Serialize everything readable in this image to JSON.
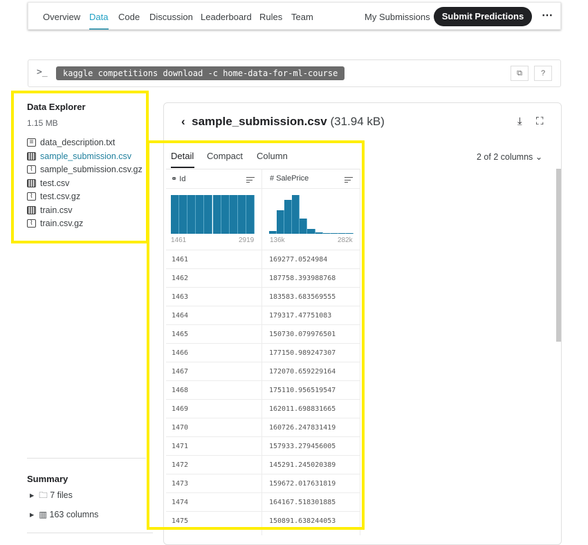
{
  "nav": {
    "items": [
      "Overview",
      "Data",
      "Code",
      "Discussion",
      "Leaderboard",
      "Rules",
      "Team"
    ],
    "active": "Data",
    "my_submissions": "My Submissions",
    "submit": "Submit Predictions",
    "more": "⋯"
  },
  "command": {
    "prompt": ">_",
    "text": "kaggle competitions download -c home-data-for-ml-course",
    "copy_icon": "copy-icon",
    "help": "?"
  },
  "explorer": {
    "title": "Data Explorer",
    "size": "1.15 MB",
    "files": [
      {
        "name": "data_description.txt",
        "icon": "text-file-icon"
      },
      {
        "name": "sample_submission.csv",
        "icon": "table-icon",
        "selected": true
      },
      {
        "name": "sample_submission.csv.gz",
        "icon": "archive-icon"
      },
      {
        "name": "test.csv",
        "icon": "table-icon"
      },
      {
        "name": "test.csv.gz",
        "icon": "archive-icon"
      },
      {
        "name": "train.csv",
        "icon": "table-icon"
      },
      {
        "name": "train.csv.gz",
        "icon": "archive-icon"
      }
    ]
  },
  "summary": {
    "title": "Summary",
    "items": [
      "7 files",
      "163 columns"
    ]
  },
  "viewer": {
    "file": "sample_submission.csv",
    "size": "(31.94 kB)",
    "tabs": [
      "Detail",
      "Compact",
      "Column"
    ],
    "active_tab": "Detail",
    "columns_count": "2 of 2 columns",
    "columns": [
      {
        "name": "Id",
        "type_icon": "⚭",
        "min": "1461",
        "max": "2919",
        "hist": [
          1,
          1,
          1,
          1,
          1,
          1,
          1,
          1,
          1,
          1
        ]
      },
      {
        "name": "SalePrice",
        "type_icon": "#",
        "min": "136k",
        "max": "282k",
        "hist": [
          0.08,
          0.6,
          0.88,
          1.0,
          0.4,
          0.12,
          0.03,
          0.01,
          0.01,
          0.01,
          0.01
        ]
      }
    ],
    "rows": [
      [
        "1461",
        "169277.0524984"
      ],
      [
        "1462",
        "187758.393988768"
      ],
      [
        "1463",
        "183583.683569555"
      ],
      [
        "1464",
        "179317.47751083"
      ],
      [
        "1465",
        "150730.079976501"
      ],
      [
        "1466",
        "177150.989247307"
      ],
      [
        "1467",
        "172070.659229164"
      ],
      [
        "1468",
        "175110.956519547"
      ],
      [
        "1469",
        "162011.698831665"
      ],
      [
        "1470",
        "160726.247831419"
      ],
      [
        "1471",
        "157933.279456005"
      ],
      [
        "1472",
        "145291.245020389"
      ],
      [
        "1473",
        "159672.017631819"
      ],
      [
        "1474",
        "164167.518301885"
      ],
      [
        "1475",
        "150891.638244053"
      ]
    ]
  },
  "colors": {
    "accent": "#20809e",
    "bar": "#1b7aa3",
    "highlight": "#ffee00"
  }
}
